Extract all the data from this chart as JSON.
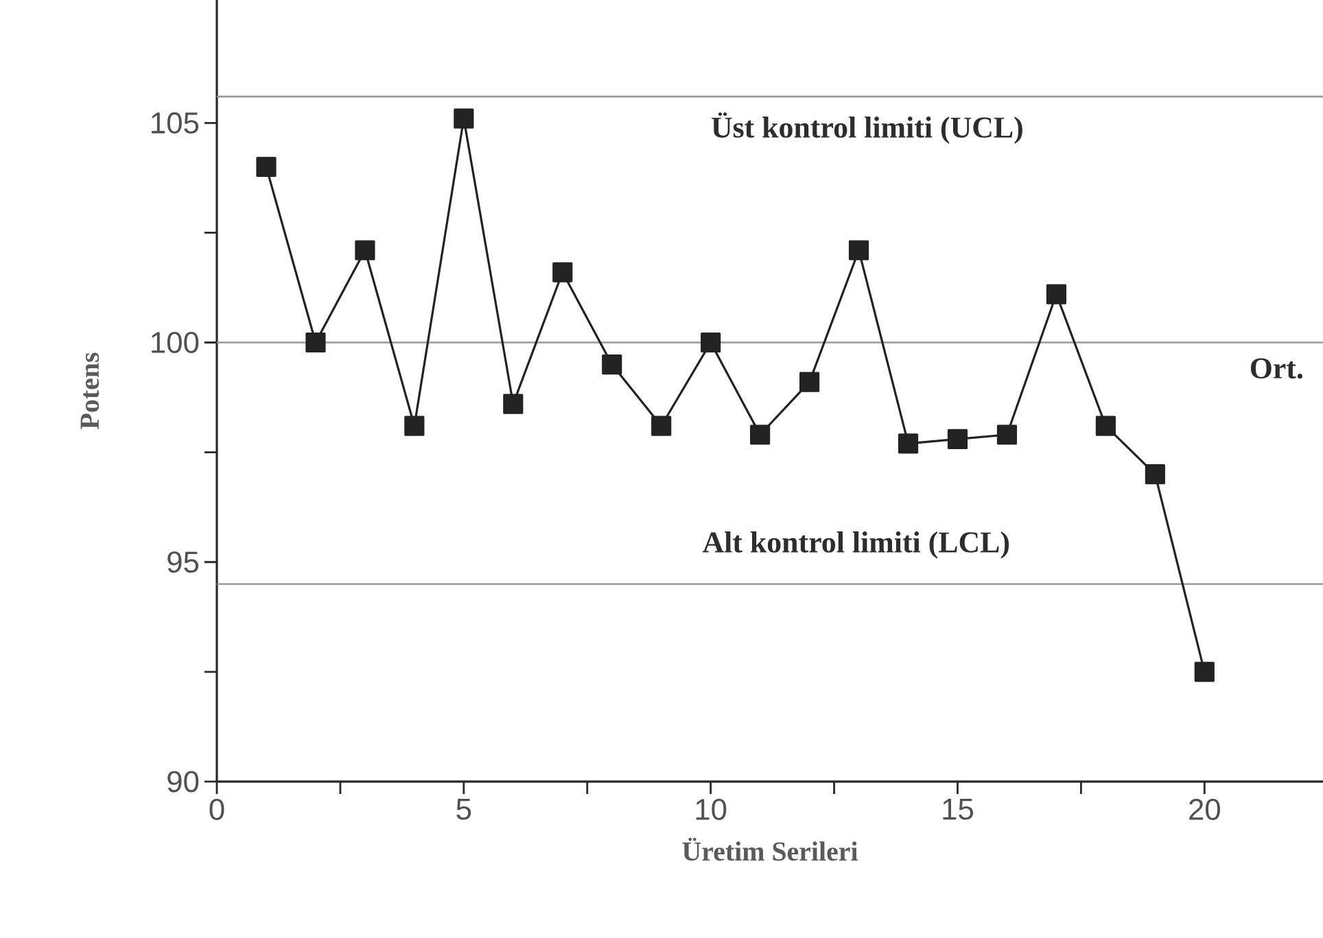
{
  "chart_data": {
    "type": "line",
    "xlabel": "Üretim Serileri",
    "ylabel": "Potens",
    "x": [
      1,
      2,
      3,
      4,
      5,
      6,
      7,
      8,
      9,
      10,
      11,
      12,
      13,
      14,
      15,
      16,
      17,
      18,
      19,
      20
    ],
    "series": [
      {
        "color": "#222222",
        "values": [
          104.0,
          100.0,
          102.1,
          98.1,
          105.1,
          98.6,
          101.6,
          99.5,
          98.1,
          100.0,
          97.9,
          99.1,
          102.1,
          97.7,
          97.8,
          97.9,
          101.1,
          98.1,
          97.0,
          92.5
        ]
      }
    ],
    "xlim": [
      0,
      22.4
    ],
    "ylim": [
      90,
      107.8
    ],
    "xticks": [
      0,
      {
        "value": 2.5,
        "label": null
      },
      5,
      {
        "value": 7.5,
        "label": null
      },
      10,
      {
        "value": 12.5,
        "label": null
      },
      15,
      {
        "value": 17.5,
        "label": null
      },
      20
    ],
    "yticks": [
      90,
      {
        "value": 92.5,
        "label": null
      },
      95,
      {
        "value": 97.5,
        "label": null
      },
      100,
      {
        "value": 102.5,
        "label": null
      },
      105
    ],
    "ref_lines": [
      {
        "axis": "y",
        "value": 105.6,
        "label": "Üst kontrol limiti (UCL)",
        "color": "#999999"
      },
      {
        "axis": "y",
        "value": 100,
        "label": "Ort.",
        "color": "#999999"
      },
      {
        "axis": "y",
        "value": 94.5,
        "label": "Alt kontrol limiti (LCL)",
        "color": "#999999"
      }
    ],
    "grid": false,
    "legend": false,
    "marker": "square",
    "line_style": "solid"
  }
}
